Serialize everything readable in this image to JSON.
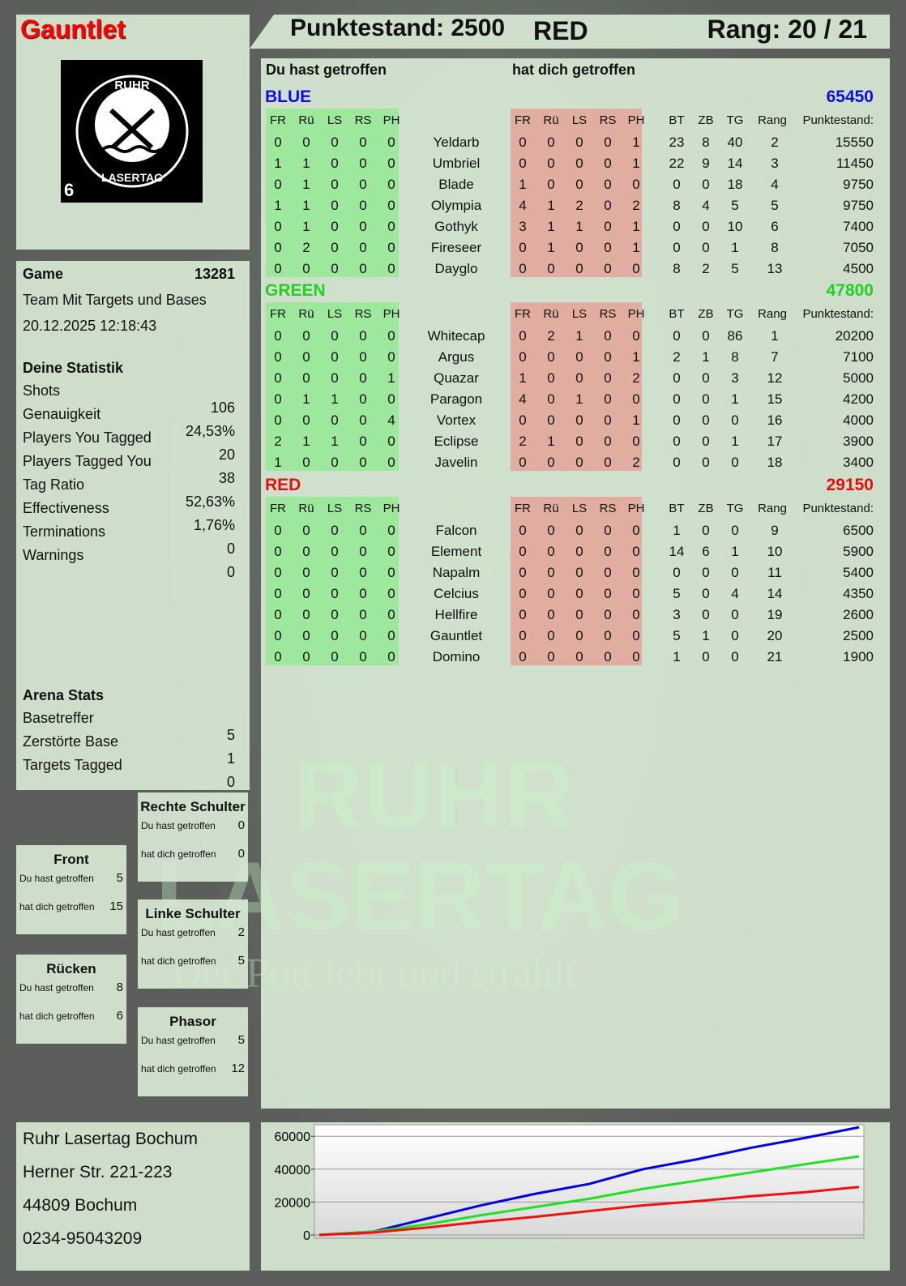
{
  "player": {
    "name": "Gauntlet",
    "score_label": "Punktestand: 2500",
    "team": "RED",
    "rank_label": "Rang: 20 / 21"
  },
  "logo": {
    "text_top": "RUHR",
    "text_bottom": "LASERTAG",
    "badge": "6"
  },
  "watermark": {
    "line1": "RUHR",
    "line2": "LASERTAG",
    "tagline": "Der Pott lebt und strahlt"
  },
  "game": {
    "label": "Game",
    "id": "13281",
    "mode": "Team Mit Targets und Bases",
    "datetime": "20.12.2025 12:18:43"
  },
  "stats": {
    "title": "Deine Statistik",
    "items": [
      {
        "label": "Shots",
        "value": "106"
      },
      {
        "label": "Genauigkeit",
        "value": "24,53%"
      },
      {
        "label": "Players You Tagged",
        "value": "20"
      },
      {
        "label": "Players Tagged You",
        "value": "38"
      },
      {
        "label": "Tag Ratio",
        "value": "52,63%"
      },
      {
        "label": "Effectiveness",
        "value": "1,76%"
      },
      {
        "label": "Terminations",
        "value": "0"
      },
      {
        "label": "Warnings",
        "value": "0"
      }
    ]
  },
  "arena": {
    "title": "Arena Stats",
    "items": [
      {
        "label": "Basetreffer",
        "value": "5"
      },
      {
        "label": "Zerstörte Base",
        "value": "1"
      },
      {
        "label": "Targets Tagged",
        "value": "0"
      }
    ]
  },
  "zones": [
    {
      "title": "Rechte Schulter",
      "hit_label": "Du hast getroffen",
      "hit": "0",
      "got_label": "hat dich getroffen",
      "got": "0"
    },
    {
      "title": "Front",
      "hit_label": "Du hast getroffen",
      "hit": "5",
      "got_label": "hat dich getroffen",
      "got": "15"
    },
    {
      "title": "Linke Schulter",
      "hit_label": "Du hast getroffen",
      "hit": "2",
      "got_label": "hat dich getroffen",
      "got": "5"
    },
    {
      "title": "Rücken",
      "hit_label": "Du hast getroffen",
      "hit": "8",
      "got_label": "hat dich getroffen",
      "got": "6"
    },
    {
      "title": "Phasor",
      "hit_label": "Du hast getroffen",
      "hit": "5",
      "got_label": "hat dich getroffen",
      "got": "12"
    }
  ],
  "address": [
    "Ruhr Lasertag Bochum",
    "Herner Str. 221-223",
    "44809 Bochum",
    "0234-95043209"
  ],
  "table": {
    "you_hit": "Du hast getroffen",
    "hit_you": "hat dich getroffen",
    "cols_hit": [
      "FR",
      "Rü",
      "LS",
      "RS",
      "PH"
    ],
    "cols_stats": [
      "BT",
      "ZB",
      "TG",
      "Rang"
    ],
    "score_col": "Punktestand:",
    "teams": [
      {
        "name": "BLUE",
        "total": "65450",
        "color": "#0a10d8",
        "players": [
          [
            "Yeldarb",
            [
              0,
              0,
              0,
              0,
              0
            ],
            [
              0,
              0,
              0,
              0,
              1
            ],
            [
              23,
              8,
              40,
              2
            ],
            15550
          ],
          [
            "Umbriel",
            [
              1,
              1,
              0,
              0,
              0
            ],
            [
              0,
              0,
              0,
              0,
              1
            ],
            [
              22,
              9,
              14,
              3
            ],
            11450
          ],
          [
            "Blade",
            [
              0,
              1,
              0,
              0,
              0
            ],
            [
              1,
              0,
              0,
              0,
              0
            ],
            [
              0,
              0,
              18,
              4
            ],
            9750
          ],
          [
            "Olympia",
            [
              1,
              1,
              0,
              0,
              0
            ],
            [
              4,
              1,
              2,
              0,
              2
            ],
            [
              8,
              4,
              5,
              5
            ],
            9750
          ],
          [
            "Gothyk",
            [
              0,
              1,
              0,
              0,
              0
            ],
            [
              3,
              1,
              1,
              0,
              1
            ],
            [
              0,
              0,
              10,
              6
            ],
            7400
          ],
          [
            "Fireseer",
            [
              0,
              2,
              0,
              0,
              0
            ],
            [
              0,
              1,
              0,
              0,
              1
            ],
            [
              0,
              0,
              1,
              8
            ],
            7050
          ],
          [
            "Dayglo",
            [
              0,
              0,
              0,
              0,
              0
            ],
            [
              0,
              0,
              0,
              0,
              0
            ],
            [
              8,
              2,
              5,
              13
            ],
            4500
          ]
        ]
      },
      {
        "name": "GREEN",
        "total": "47800",
        "color": "#22d022",
        "players": [
          [
            "Whitecap",
            [
              0,
              0,
              0,
              0,
              0
            ],
            [
              0,
              2,
              1,
              0,
              0
            ],
            [
              0,
              0,
              86,
              1
            ],
            20200
          ],
          [
            "Argus",
            [
              0,
              0,
              0,
              0,
              0
            ],
            [
              0,
              0,
              0,
              0,
              1
            ],
            [
              2,
              1,
              8,
              7
            ],
            7100
          ],
          [
            "Quazar",
            [
              0,
              0,
              0,
              0,
              1
            ],
            [
              1,
              0,
              0,
              0,
              2
            ],
            [
              0,
              0,
              3,
              12
            ],
            5000
          ],
          [
            "Paragon",
            [
              0,
              1,
              1,
              0,
              0
            ],
            [
              4,
              0,
              1,
              0,
              0
            ],
            [
              0,
              0,
              1,
              15
            ],
            4200
          ],
          [
            "Vortex",
            [
              0,
              0,
              0,
              0,
              4
            ],
            [
              0,
              0,
              0,
              0,
              1
            ],
            [
              0,
              0,
              0,
              16
            ],
            4000
          ],
          [
            "Eclipse",
            [
              2,
              1,
              1,
              0,
              0
            ],
            [
              2,
              1,
              0,
              0,
              0
            ],
            [
              0,
              0,
              1,
              17
            ],
            3900
          ],
          [
            "Javelin",
            [
              1,
              0,
              0,
              0,
              0
            ],
            [
              0,
              0,
              0,
              0,
              2
            ],
            [
              0,
              0,
              0,
              18
            ],
            3400
          ]
        ]
      },
      {
        "name": "RED",
        "total": "29150",
        "color": "#e01010",
        "players": [
          [
            "Falcon",
            [
              0,
              0,
              0,
              0,
              0
            ],
            [
              0,
              0,
              0,
              0,
              0
            ],
            [
              1,
              0,
              0,
              9
            ],
            6500
          ],
          [
            "Element",
            [
              0,
              0,
              0,
              0,
              0
            ],
            [
              0,
              0,
              0,
              0,
              0
            ],
            [
              14,
              6,
              1,
              10
            ],
            5900
          ],
          [
            "Napalm",
            [
              0,
              0,
              0,
              0,
              0
            ],
            [
              0,
              0,
              0,
              0,
              0
            ],
            [
              0,
              0,
              0,
              11
            ],
            5400
          ],
          [
            "Celcius",
            [
              0,
              0,
              0,
              0,
              0
            ],
            [
              0,
              0,
              0,
              0,
              0
            ],
            [
              5,
              0,
              4,
              14
            ],
            4350
          ],
          [
            "Hellfire",
            [
              0,
              0,
              0,
              0,
              0
            ],
            [
              0,
              0,
              0,
              0,
              0
            ],
            [
              3,
              0,
              0,
              19
            ],
            2600
          ],
          [
            "Gauntlet",
            [
              0,
              0,
              0,
              0,
              0
            ],
            [
              0,
              0,
              0,
              0,
              0
            ],
            [
              5,
              1,
              0,
              20
            ],
            2500
          ],
          [
            "Domino",
            [
              0,
              0,
              0,
              0,
              0
            ],
            [
              0,
              0,
              0,
              0,
              0
            ],
            [
              1,
              0,
              0,
              21
            ],
            1900
          ]
        ]
      }
    ]
  },
  "chart_data": {
    "type": "line",
    "ylim": [
      0,
      67000
    ],
    "yticks": [
      0,
      20000,
      40000,
      60000
    ],
    "grid": true,
    "x": [
      0,
      1,
      2,
      3,
      4,
      5,
      6,
      7,
      8,
      9,
      10
    ],
    "series": [
      {
        "color": "#0000e0",
        "values": [
          0,
          2000,
          10000,
          18000,
          25000,
          31000,
          40000,
          46000,
          53000,
          59000,
          65450
        ]
      },
      {
        "color": "#22e022",
        "values": [
          0,
          2000,
          6500,
          12000,
          17000,
          22000,
          28000,
          33000,
          38000,
          43000,
          47800
        ]
      },
      {
        "color": "#ee1111",
        "values": [
          0,
          1500,
          4500,
          8000,
          11000,
          14500,
          18000,
          20500,
          23500,
          26000,
          29150
        ]
      }
    ]
  }
}
